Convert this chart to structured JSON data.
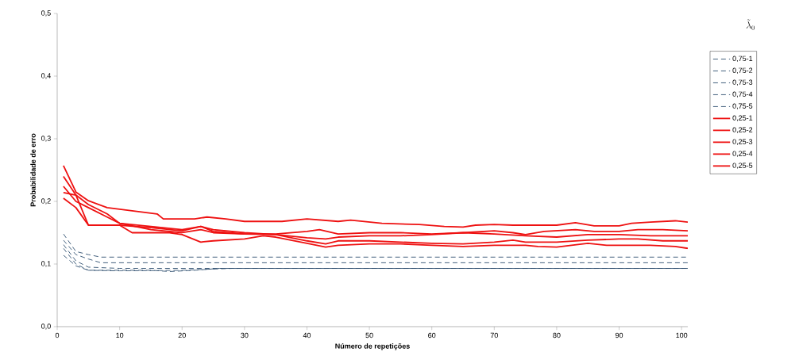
{
  "chart_data": {
    "type": "line",
    "xlabel": "Número de repetições",
    "ylabel": "Probabilidade de erro",
    "legend_title": "\\tilde{\\lambda}_0",
    "xlim": [
      0,
      101
    ],
    "ylim": [
      0,
      0.5
    ],
    "xticks": [
      0,
      10,
      20,
      30,
      40,
      50,
      60,
      70,
      80,
      90,
      100
    ],
    "yticks": [
      {
        "value": 0,
        "label": "0,0"
      },
      {
        "value": 0.1,
        "label": "0,1"
      },
      {
        "value": 0.2,
        "label": "0,2"
      },
      {
        "value": 0.3,
        "label": "0,3"
      },
      {
        "value": 0.4,
        "label": "0,4"
      },
      {
        "value": 0.5,
        "label": "0,5"
      }
    ],
    "grid": false,
    "legend": "right",
    "marker": "none",
    "series": [
      {
        "name": "0,75-1",
        "color": "#2f4f6f",
        "line_style": "dashed",
        "x": [
          1,
          3,
          5,
          7,
          101
        ],
        "values": [
          0.148,
          0.12,
          0.115,
          0.111,
          0.111
        ]
      },
      {
        "name": "0,75-2",
        "color": "#2f4f6f",
        "line_style": "dashed",
        "x": [
          1,
          3,
          5,
          7,
          101
        ],
        "values": [
          0.138,
          0.115,
          0.108,
          0.102,
          0.102
        ]
      },
      {
        "name": "0,75-3",
        "color": "#2f4f6f",
        "line_style": "dashed",
        "x": [
          1,
          3,
          5,
          10,
          101
        ],
        "values": [
          0.131,
          0.105,
          0.095,
          0.093,
          0.093
        ]
      },
      {
        "name": "0,75-4",
        "color": "#2f4f6f",
        "line_style": "dashed",
        "x": [
          1,
          3,
          5,
          10,
          20,
          25,
          28,
          101
        ],
        "values": [
          0.125,
          0.1,
          0.09,
          0.089,
          0.09,
          0.092,
          0.093,
          0.093
        ]
      },
      {
        "name": "0,75-5",
        "color": "#2f4f6f",
        "line_style": "dashed",
        "x": [
          1,
          3,
          5,
          10,
          15,
          18,
          22,
          26,
          101
        ],
        "values": [
          0.114,
          0.097,
          0.09,
          0.09,
          0.09,
          0.088,
          0.09,
          0.093,
          0.093
        ]
      },
      {
        "name": "0,25-1",
        "color": "#ee1111",
        "line_style": "solid",
        "x": [
          1,
          3,
          5,
          8,
          12,
          16,
          17,
          22,
          24,
          27,
          30,
          36,
          40,
          45,
          47,
          52,
          58,
          62,
          65,
          67,
          70,
          73,
          80,
          83,
          86,
          90,
          92,
          95,
          99,
          101
        ],
        "values": [
          0.257,
          0.215,
          0.201,
          0.19,
          0.185,
          0.18,
          0.172,
          0.172,
          0.175,
          0.172,
          0.168,
          0.168,
          0.172,
          0.168,
          0.17,
          0.165,
          0.163,
          0.16,
          0.159,
          0.162,
          0.163,
          0.162,
          0.162,
          0.166,
          0.161,
          0.161,
          0.165,
          0.167,
          0.169,
          0.167
        ]
      },
      {
        "name": "0,25-2",
        "color": "#ee1111",
        "line_style": "solid",
        "x": [
          1,
          3,
          5,
          8,
          10,
          15,
          20,
          23,
          25,
          30,
          35,
          40,
          42,
          45,
          50,
          55,
          60,
          65,
          70,
          73,
          75,
          78,
          83,
          86,
          90,
          93,
          97,
          101
        ],
        "values": [
          0.24,
          0.21,
          0.195,
          0.18,
          0.165,
          0.16,
          0.155,
          0.16,
          0.152,
          0.148,
          0.148,
          0.152,
          0.155,
          0.148,
          0.15,
          0.15,
          0.148,
          0.15,
          0.153,
          0.15,
          0.147,
          0.152,
          0.155,
          0.152,
          0.152,
          0.155,
          0.155,
          0.153
        ]
      },
      {
        "name": "0,25-3",
        "color": "#ee1111",
        "line_style": "solid",
        "x": [
          1,
          3,
          5,
          8,
          10,
          15,
          20,
          23,
          25,
          30,
          35,
          40,
          43,
          45,
          50,
          55,
          60,
          65,
          70,
          75,
          80,
          85,
          90,
          95,
          101
        ],
        "values": [
          0.224,
          0.2,
          0.19,
          0.175,
          0.165,
          0.155,
          0.15,
          0.155,
          0.15,
          0.148,
          0.147,
          0.142,
          0.14,
          0.143,
          0.145,
          0.145,
          0.147,
          0.15,
          0.148,
          0.145,
          0.143,
          0.147,
          0.147,
          0.145,
          0.145
        ]
      },
      {
        "name": "0,25-4",
        "color": "#ee1111",
        "line_style": "solid",
        "x": [
          1,
          3,
          5,
          10,
          15,
          20,
          23,
          25,
          30,
          35,
          40,
          43,
          45,
          50,
          55,
          60,
          65,
          70,
          73,
          75,
          80,
          85,
          90,
          93,
          97,
          101
        ],
        "values": [
          0.214,
          0.21,
          0.162,
          0.162,
          0.158,
          0.153,
          0.16,
          0.155,
          0.15,
          0.147,
          0.137,
          0.132,
          0.137,
          0.137,
          0.135,
          0.133,
          0.132,
          0.135,
          0.138,
          0.135,
          0.135,
          0.138,
          0.14,
          0.14,
          0.137,
          0.137
        ]
      },
      {
        "name": "0,25-5",
        "color": "#ee1111",
        "line_style": "solid",
        "x": [
          1,
          3,
          5,
          10,
          12,
          15,
          18,
          20,
          23,
          25,
          30,
          33,
          35,
          40,
          43,
          45,
          50,
          55,
          60,
          65,
          70,
          75,
          77,
          80,
          85,
          88,
          92,
          95,
          99,
          101
        ],
        "values": [
          0.205,
          0.19,
          0.162,
          0.162,
          0.15,
          0.15,
          0.15,
          0.147,
          0.135,
          0.137,
          0.14,
          0.145,
          0.143,
          0.133,
          0.127,
          0.13,
          0.132,
          0.132,
          0.13,
          0.128,
          0.13,
          0.13,
          0.128,
          0.127,
          0.133,
          0.13,
          0.13,
          0.13,
          0.128,
          0.125
        ]
      }
    ]
  }
}
